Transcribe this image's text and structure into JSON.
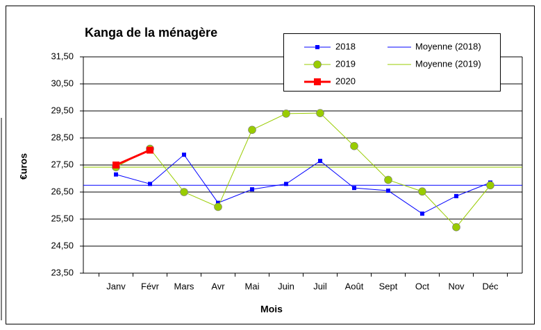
{
  "chart_data": {
    "type": "line",
    "title": "Kanga de la ménagère",
    "x_label": "Mois",
    "y_label": "€uros",
    "categories": [
      "Janv",
      "Févr",
      "Mars",
      "Avr",
      "Mai",
      "Juin",
      "Juil",
      "Août",
      "Sept",
      "Oct",
      "Nov",
      "Déc"
    ],
    "series": [
      {
        "name": "2018",
        "color": "#0000ff",
        "marker": "square",
        "width": 1,
        "values": [
          27.15,
          26.8,
          27.88,
          26.1,
          26.6,
          26.8,
          27.65,
          26.65,
          26.55,
          25.7,
          26.35,
          26.85
        ]
      },
      {
        "name": "2019",
        "color": "#99cc00",
        "marker": "circle",
        "width": 1,
        "values": [
          27.42,
          28.1,
          26.5,
          25.95,
          28.8,
          29.4,
          29.42,
          28.2,
          26.95,
          26.52,
          25.2,
          26.75
        ]
      },
      {
        "name": "2020",
        "color": "#ff0000",
        "marker": "square",
        "width": 3,
        "values": [
          27.5,
          28.05,
          null,
          null,
          null,
          null,
          null,
          null,
          null,
          null,
          null,
          null
        ]
      }
    ],
    "reference_lines": [
      {
        "name": "Moyenne (2018)",
        "color": "#0000ff",
        "value": 26.75
      },
      {
        "name": "Moyenne (2019)",
        "color": "#99cc00",
        "value": 27.42
      }
    ],
    "ylim": [
      23.5,
      31.5
    ],
    "yticks": [
      {
        "value": 23.5,
        "label": "23,50"
      },
      {
        "value": 24.5,
        "label": "24,50"
      },
      {
        "value": 25.5,
        "label": "25,50"
      },
      {
        "value": 26.5,
        "label": "26,50"
      },
      {
        "value": 27.5,
        "label": "27,50"
      },
      {
        "value": 28.5,
        "label": "28,50"
      },
      {
        "value": 29.5,
        "label": "29,50"
      },
      {
        "value": 30.5,
        "label": "30,50"
      },
      {
        "value": 31.5,
        "label": "31,50"
      }
    ],
    "grid": true,
    "legend": "top-right"
  }
}
